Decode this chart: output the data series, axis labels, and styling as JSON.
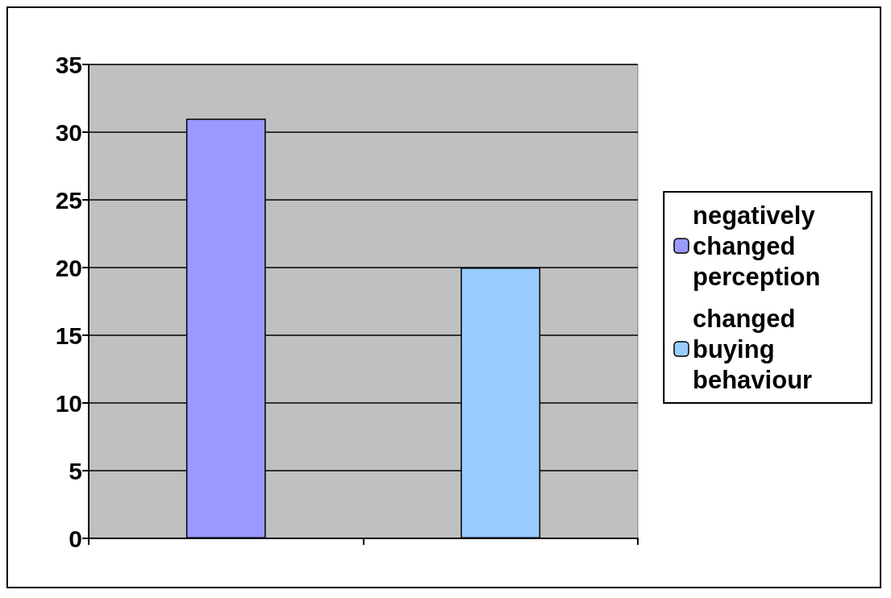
{
  "chart_data": {
    "type": "bar",
    "categories": [
      null,
      null
    ],
    "series": [
      {
        "name": "negatively changed perception",
        "color": "#9999ff",
        "values": [
          31,
          null
        ]
      },
      {
        "name": "changed buying behaviour",
        "color": "#99ccff",
        "values": [
          null,
          20
        ]
      }
    ],
    "ylim": [
      0,
      35
    ],
    "yticks": [
      0,
      5,
      10,
      15,
      20,
      25,
      30,
      35
    ],
    "grid": "y",
    "legend": "right"
  }
}
